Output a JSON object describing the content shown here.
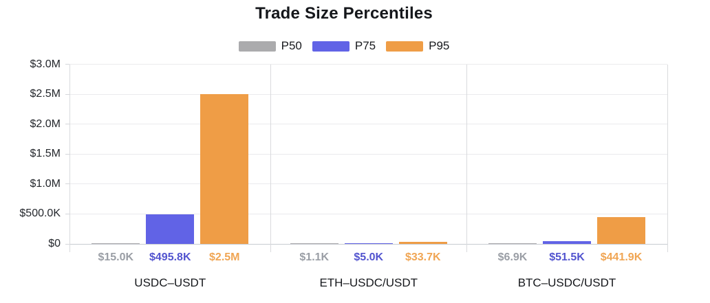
{
  "chart_data": {
    "type": "bar",
    "title": "Trade Size Percentiles",
    "categories": [
      "USDC–USDT",
      "ETH–USDC/USDT",
      "BTC–USDC/USDT"
    ],
    "series": [
      {
        "name": "P50",
        "color": "#ababad",
        "label_color": "#9a9ea5",
        "values": [
          15000,
          1100,
          6900
        ],
        "value_labels": [
          "$15.0K",
          "$1.1K",
          "$6.9K"
        ]
      },
      {
        "name": "P75",
        "color": "#6163e6",
        "label_color": "#5254cf",
        "values": [
          495800,
          5000,
          51500
        ],
        "value_labels": [
          "$495.8K",
          "$5.0K",
          "$51.5K"
        ]
      },
      {
        "name": "P95",
        "color": "#ef9d46",
        "label_color": "#f0a553",
        "values": [
          2500000,
          33700,
          441900
        ],
        "value_labels": [
          "$2.5M",
          "$33.7K",
          "$441.9K"
        ]
      }
    ],
    "y_ticks": [
      "$0",
      "$500.0K",
      "$1.0M",
      "$1.5M",
      "$2.0M",
      "$2.5M",
      "$3.0M"
    ],
    "ylim": [
      0,
      3000000
    ],
    "grid": true,
    "legend_position": "top"
  }
}
